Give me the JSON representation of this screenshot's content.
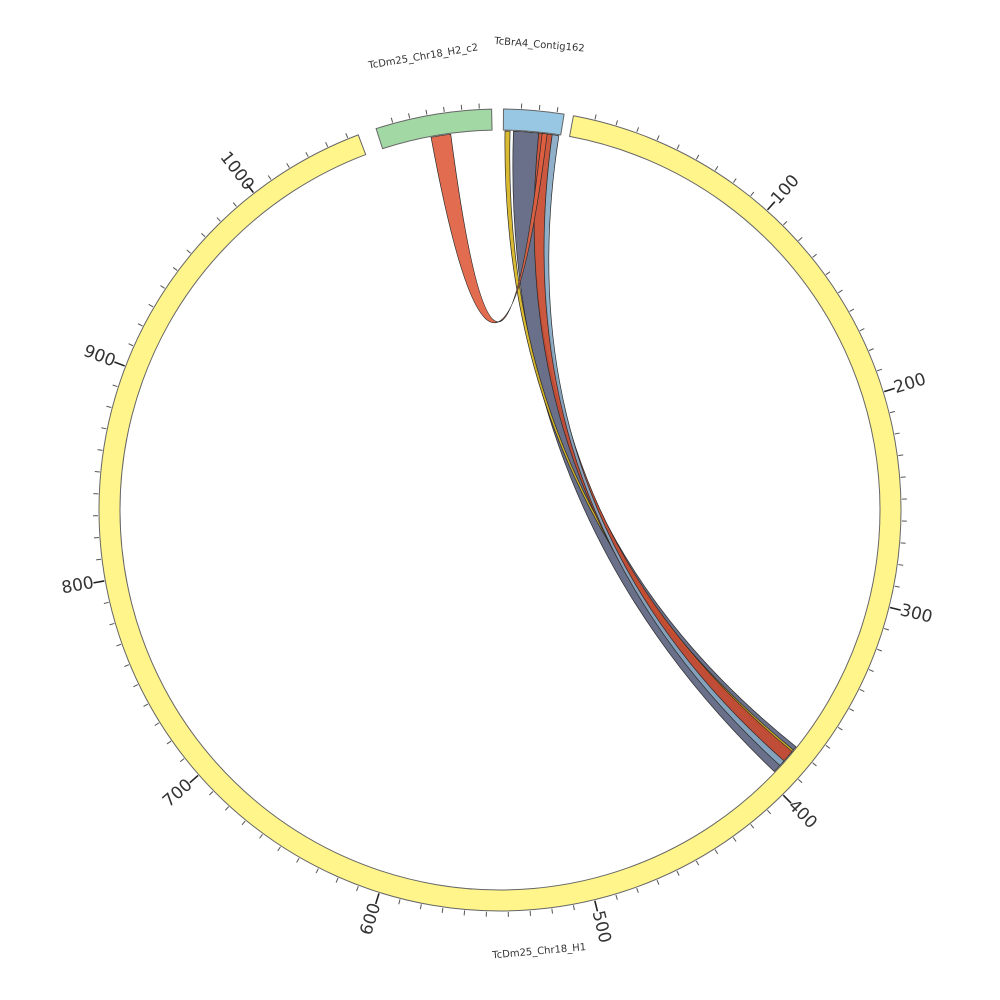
{
  "diagram": {
    "type": "circos",
    "sequences": [
      {
        "id": "h1",
        "label": "TcDm25_Chr18_H1",
        "length": 1055,
        "color": "#fff58a"
      },
      {
        "id": "h2",
        "label": "TcDm25_Chr18_H2_c2",
        "length": 67,
        "color": "#a1d8a4"
      },
      {
        "id": "ctg",
        "label": "TcBrA4_Contig162",
        "length": 34,
        "color": "#97c7e3"
      }
    ],
    "tick_labels_sequence": "h1",
    "major_ticks": [
      {
        "pos": 100,
        "label": "100"
      },
      {
        "pos": 200,
        "label": "200"
      },
      {
        "pos": 300,
        "label": "300"
      },
      {
        "pos": 400,
        "label": "400"
      },
      {
        "pos": 500,
        "label": "500"
      },
      {
        "pos": 600,
        "label": "600"
      },
      {
        "pos": 700,
        "label": "700"
      },
      {
        "pos": 800,
        "label": "800"
      },
      {
        "pos": 900,
        "label": "900"
      },
      {
        "pos": 1000,
        "label": "1000"
      }
    ],
    "minor_tick_step": 10,
    "links": [
      {
        "from": "ctg",
        "from_start": 6,
        "from_end": 21,
        "to": "h1",
        "to_start": 379,
        "to_end": 395,
        "color": "#5d647f"
      },
      {
        "from": "ctg",
        "from_start": 1,
        "from_end": 4,
        "to": "h1",
        "to_start": 381,
        "to_end": 383,
        "color": "#d7b41e"
      },
      {
        "from": "ctg",
        "from_start": 21,
        "from_end": 29,
        "to": "h1",
        "to_start": 382,
        "to_end": 389,
        "color": "#c84a30"
      },
      {
        "from": "ctg",
        "from_start": 29,
        "from_end": 33,
        "to": "h1",
        "to_start": 388,
        "to_end": 391,
        "color": "#87a8c4"
      },
      {
        "from": "h2",
        "from_start": 30,
        "from_end": 42,
        "to": "ctg",
        "to_start": 23,
        "to_end": 26,
        "color": "#e06040"
      }
    ]
  }
}
